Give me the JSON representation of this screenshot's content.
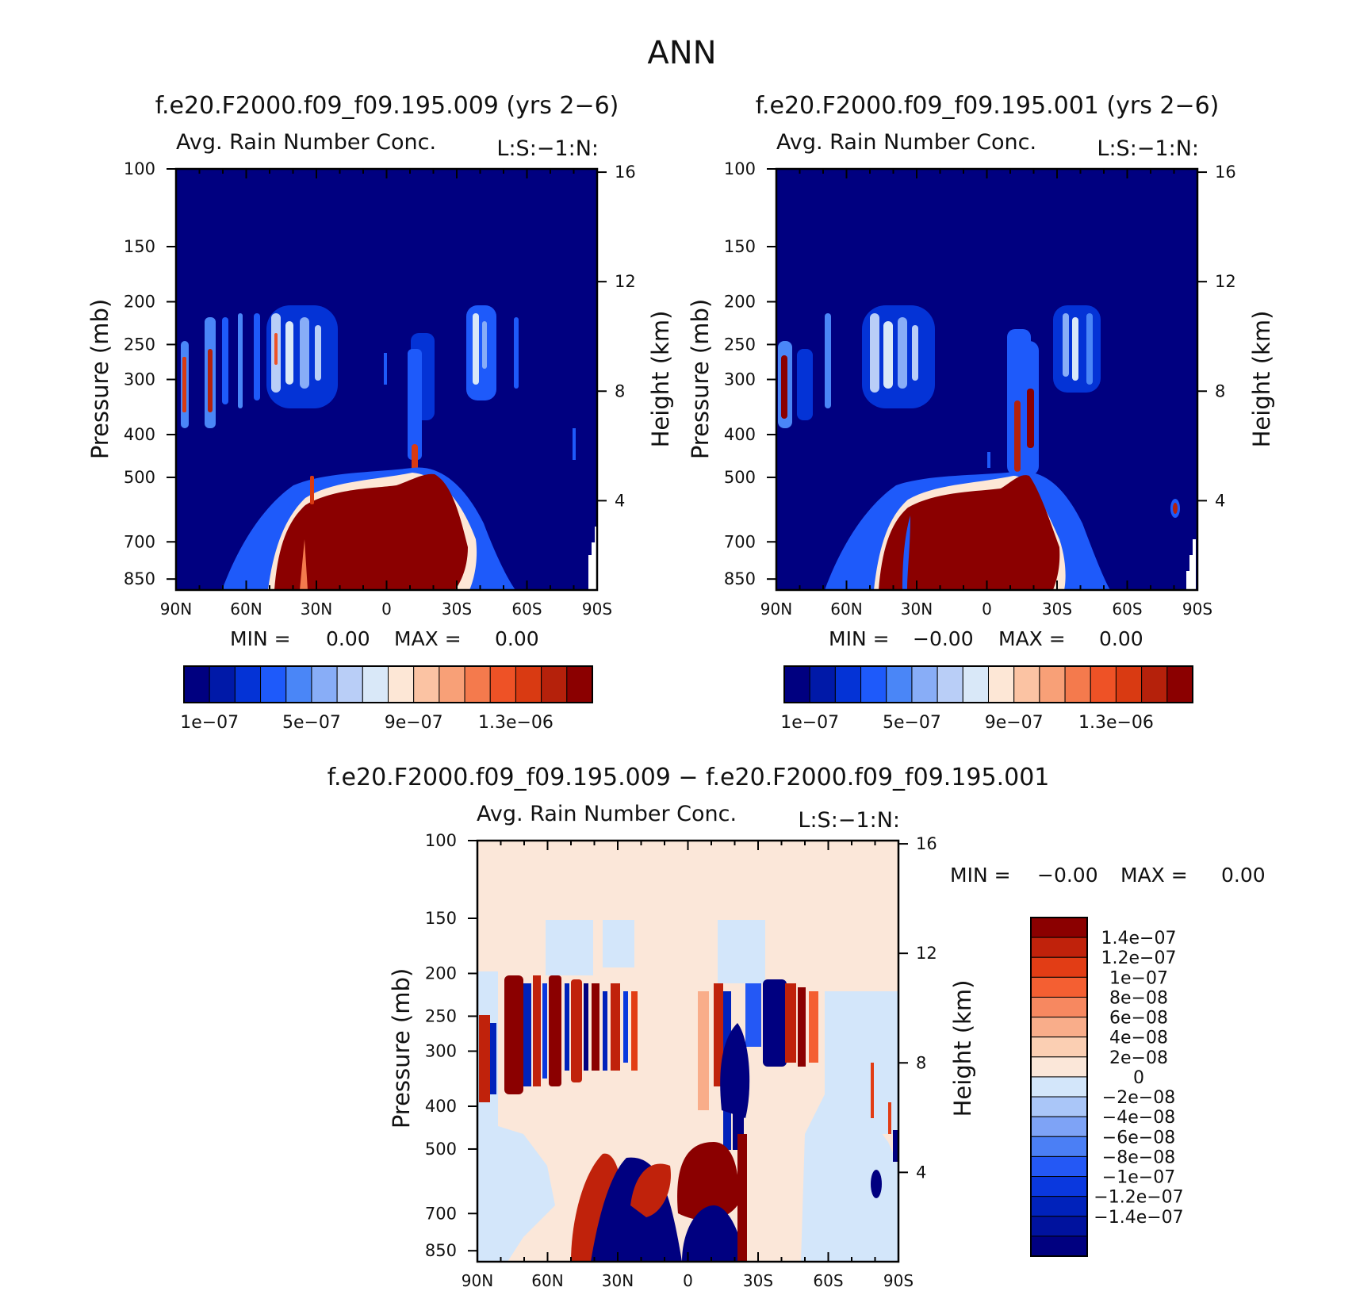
{
  "figure": {
    "title": "ANN"
  },
  "colors": {
    "abs_scale": [
      "#000080",
      "#0019a8",
      "#0433d6",
      "#1e5afa",
      "#4a86f7",
      "#88adf7",
      "#b9cef7",
      "#d9e8f8",
      "#fde7d6",
      "#fbc3a3",
      "#f8a077",
      "#f47a4d",
      "#ee5226",
      "#d93a12",
      "#b5210b",
      "#8b0000"
    ],
    "diff_scale": [
      "#000080",
      "#00129e",
      "#0022bb",
      "#0a38de",
      "#2458f5",
      "#4b7ff5",
      "#7ea3f6",
      "#aac6f8",
      "#d3e6fa",
      "#fbe7d9",
      "#fbcfb3",
      "#f9ad8a",
      "#f78860",
      "#f45f32",
      "#e23d15",
      "#c0220b",
      "#8b0000"
    ]
  },
  "chart_data": [
    {
      "type": "heatmap",
      "name": "panel_model_009",
      "title": "f.e20.F2000.f09_f09.195.009 (yrs 2−6)",
      "subtitle": "Avg. Rain Number Conc.",
      "units_label": "L:S:−1:N:",
      "xlabel": "",
      "ylabel": "Pressure (mb)",
      "y2label": "Height (km)",
      "x_ticks": [
        "90N",
        "60N",
        "30N",
        "0",
        "30S",
        "60S",
        "90S"
      ],
      "y_ticks": [
        100,
        150,
        200,
        250,
        300,
        400,
        500,
        700,
        850
      ],
      "y2_ticks": [
        4,
        8,
        12,
        16
      ],
      "ylim": [
        100,
        1000
      ],
      "y_scale": "log",
      "min_label": "MIN =",
      "min_value": "0.00",
      "max_label": "MAX =",
      "max_value": "0.00",
      "colorbar_labels": [
        "1e−07",
        "5e−07",
        "9e−07",
        "1.3e−06"
      ],
      "colorbar_levels": 16
    },
    {
      "type": "heatmap",
      "name": "panel_model_001",
      "title": "f.e20.F2000.f09_f09.195.001 (yrs 2−6)",
      "subtitle": "Avg. Rain Number Conc.",
      "units_label": "L:S:−1:N:",
      "xlabel": "",
      "ylabel": "Pressure (mb)",
      "y2label": "Height (km)",
      "x_ticks": [
        "90N",
        "60N",
        "30N",
        "0",
        "30S",
        "60S",
        "90S"
      ],
      "y_ticks": [
        100,
        150,
        200,
        250,
        300,
        400,
        500,
        700,
        850
      ],
      "y2_ticks": [
        4,
        8,
        12,
        16
      ],
      "ylim": [
        100,
        1000
      ],
      "y_scale": "log",
      "min_label": "MIN =",
      "min_value": "−0.00",
      "max_label": "MAX =",
      "max_value": "0.00",
      "colorbar_labels": [
        "1e−07",
        "5e−07",
        "9e−07",
        "1.3e−06"
      ],
      "colorbar_levels": 16
    },
    {
      "type": "heatmap",
      "name": "panel_difference",
      "title": "f.e20.F2000.f09_f09.195.009 − f.e20.F2000.f09_f09.195.001",
      "subtitle": "Avg. Rain Number Conc.",
      "units_label": "L:S:−1:N:",
      "xlabel": "",
      "ylabel": "Pressure (mb)",
      "y2label": "Height (km)",
      "x_ticks": [
        "90N",
        "60N",
        "30N",
        "0",
        "30S",
        "60S",
        "90S"
      ],
      "y_ticks": [
        100,
        150,
        200,
        250,
        300,
        400,
        500,
        700,
        850
      ],
      "y2_ticks": [
        4,
        8,
        12,
        16
      ],
      "ylim": [
        100,
        1000
      ],
      "y_scale": "log",
      "min_label": "MIN =",
      "min_value": "−0.00",
      "max_label": "MAX =",
      "max_value": "0.00",
      "colorbar_labels": [
        "1.4e−07",
        "1.2e−07",
        "1e−07",
        "8e−08",
        "6e−08",
        "4e−08",
        "2e−08",
        "0",
        "−2e−08",
        "−4e−08",
        "−6e−08",
        "−8e−08",
        "−1e−07",
        "−1.2e−07",
        "−1.4e−07"
      ],
      "colorbar_levels": 17
    }
  ]
}
